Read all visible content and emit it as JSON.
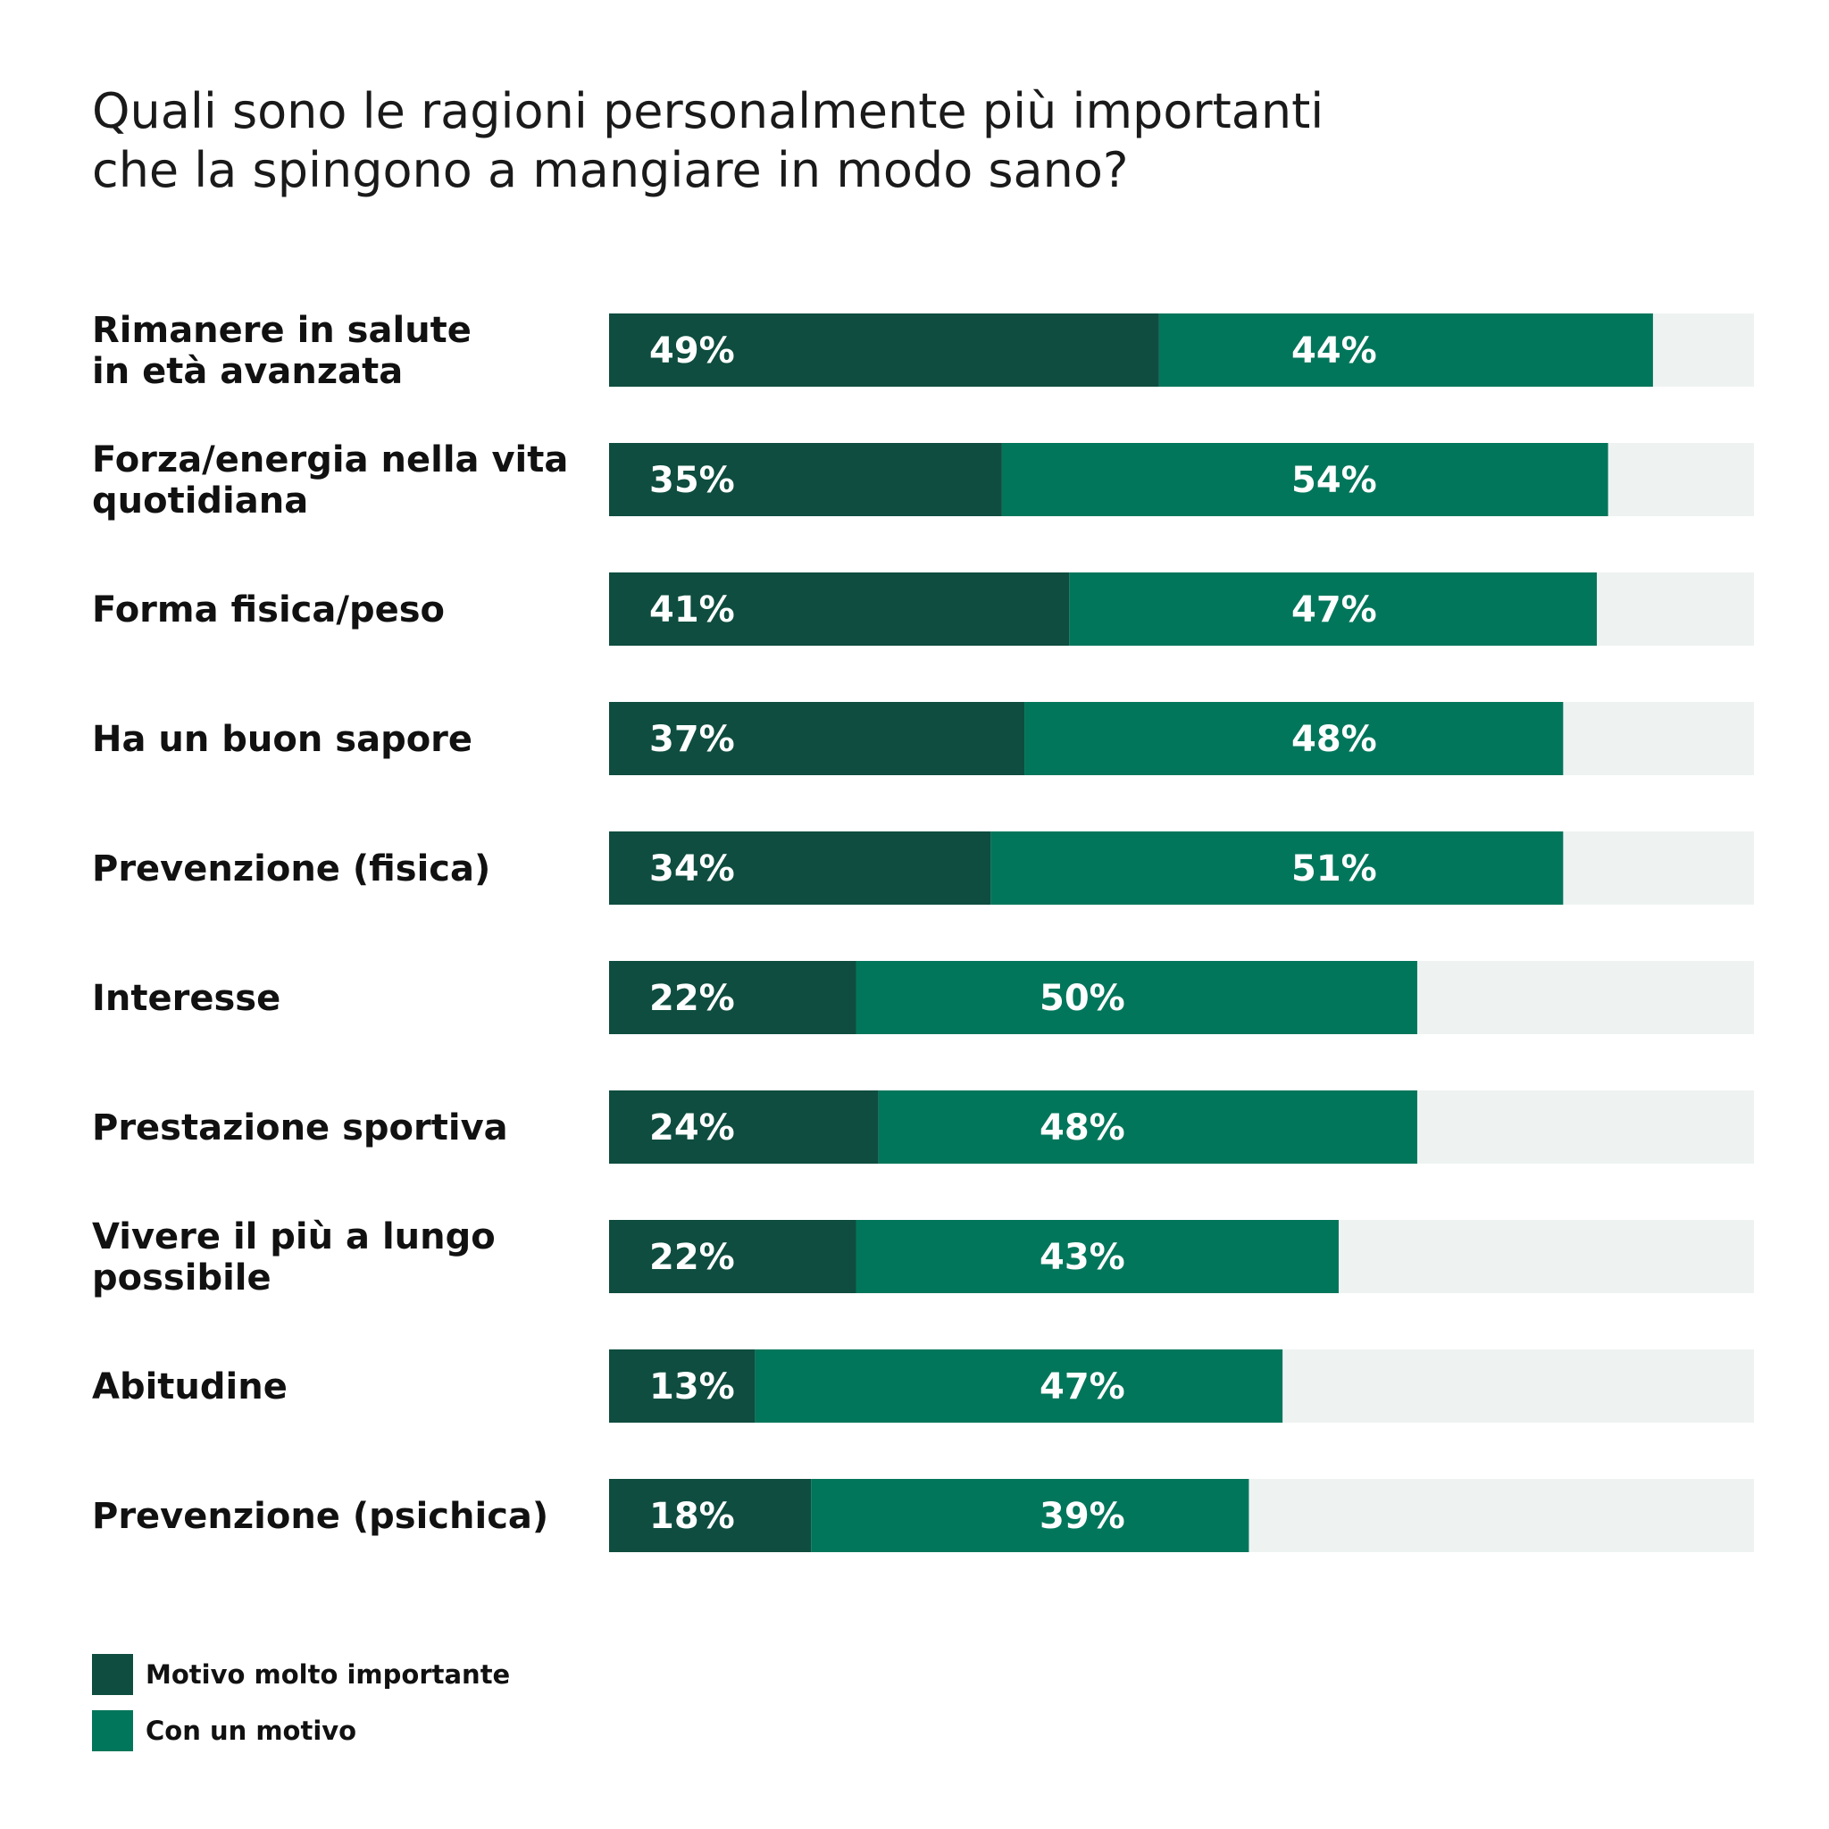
{
  "title_lines": [
    "Quali sono le ragioni personalmente più importanti",
    "che la spingono a mangiare in modo sano?"
  ],
  "colors": {
    "dark": "#0e4d3f",
    "medium": "#02765b",
    "track": "#eef3f1"
  },
  "chart_data": {
    "type": "bar",
    "orientation": "horizontal",
    "stacked": true,
    "categories": [
      [
        "Rimanere in salute",
        "in età avanzata"
      ],
      [
        "Forza/energia nella vita",
        "quotidiana"
      ],
      [
        "Forma fisica/peso"
      ],
      [
        "Ha un buon sapore"
      ],
      [
        "Prevenzione (fisica)"
      ],
      [
        "Interesse"
      ],
      [
        "Prestazione sportiva"
      ],
      [
        "Vivere il più a lungo",
        "possibile"
      ],
      [
        "Abitudine"
      ],
      [
        "Prevenzione (psichica)"
      ]
    ],
    "series": [
      {
        "name": "Motivo molto importante",
        "color": "#0e4d3f",
        "values": [
          49,
          35,
          41,
          37,
          34,
          22,
          24,
          22,
          13,
          18
        ],
        "labels": [
          "49%",
          "35%",
          "41%",
          "37%",
          "34%",
          "22%",
          "24%",
          "22%",
          "13%",
          "18%"
        ]
      },
      {
        "name": "Con un motivo",
        "color": "#02765b",
        "values": [
          44,
          54,
          47,
          48,
          51,
          50,
          48,
          43,
          47,
          39
        ],
        "labels": [
          "44%",
          "54%",
          "47%",
          "48%",
          "51%",
          "50%",
          "48%",
          "43%",
          "47%",
          "39%"
        ]
      }
    ],
    "xlim": [
      0,
      100
    ],
    "grid": false,
    "legend_position": "bottom-left"
  },
  "legend": [
    {
      "label": "Motivo molto importante",
      "color": "#0e4d3f"
    },
    {
      "label": "Con un motivo",
      "color": "#02765b"
    }
  ]
}
